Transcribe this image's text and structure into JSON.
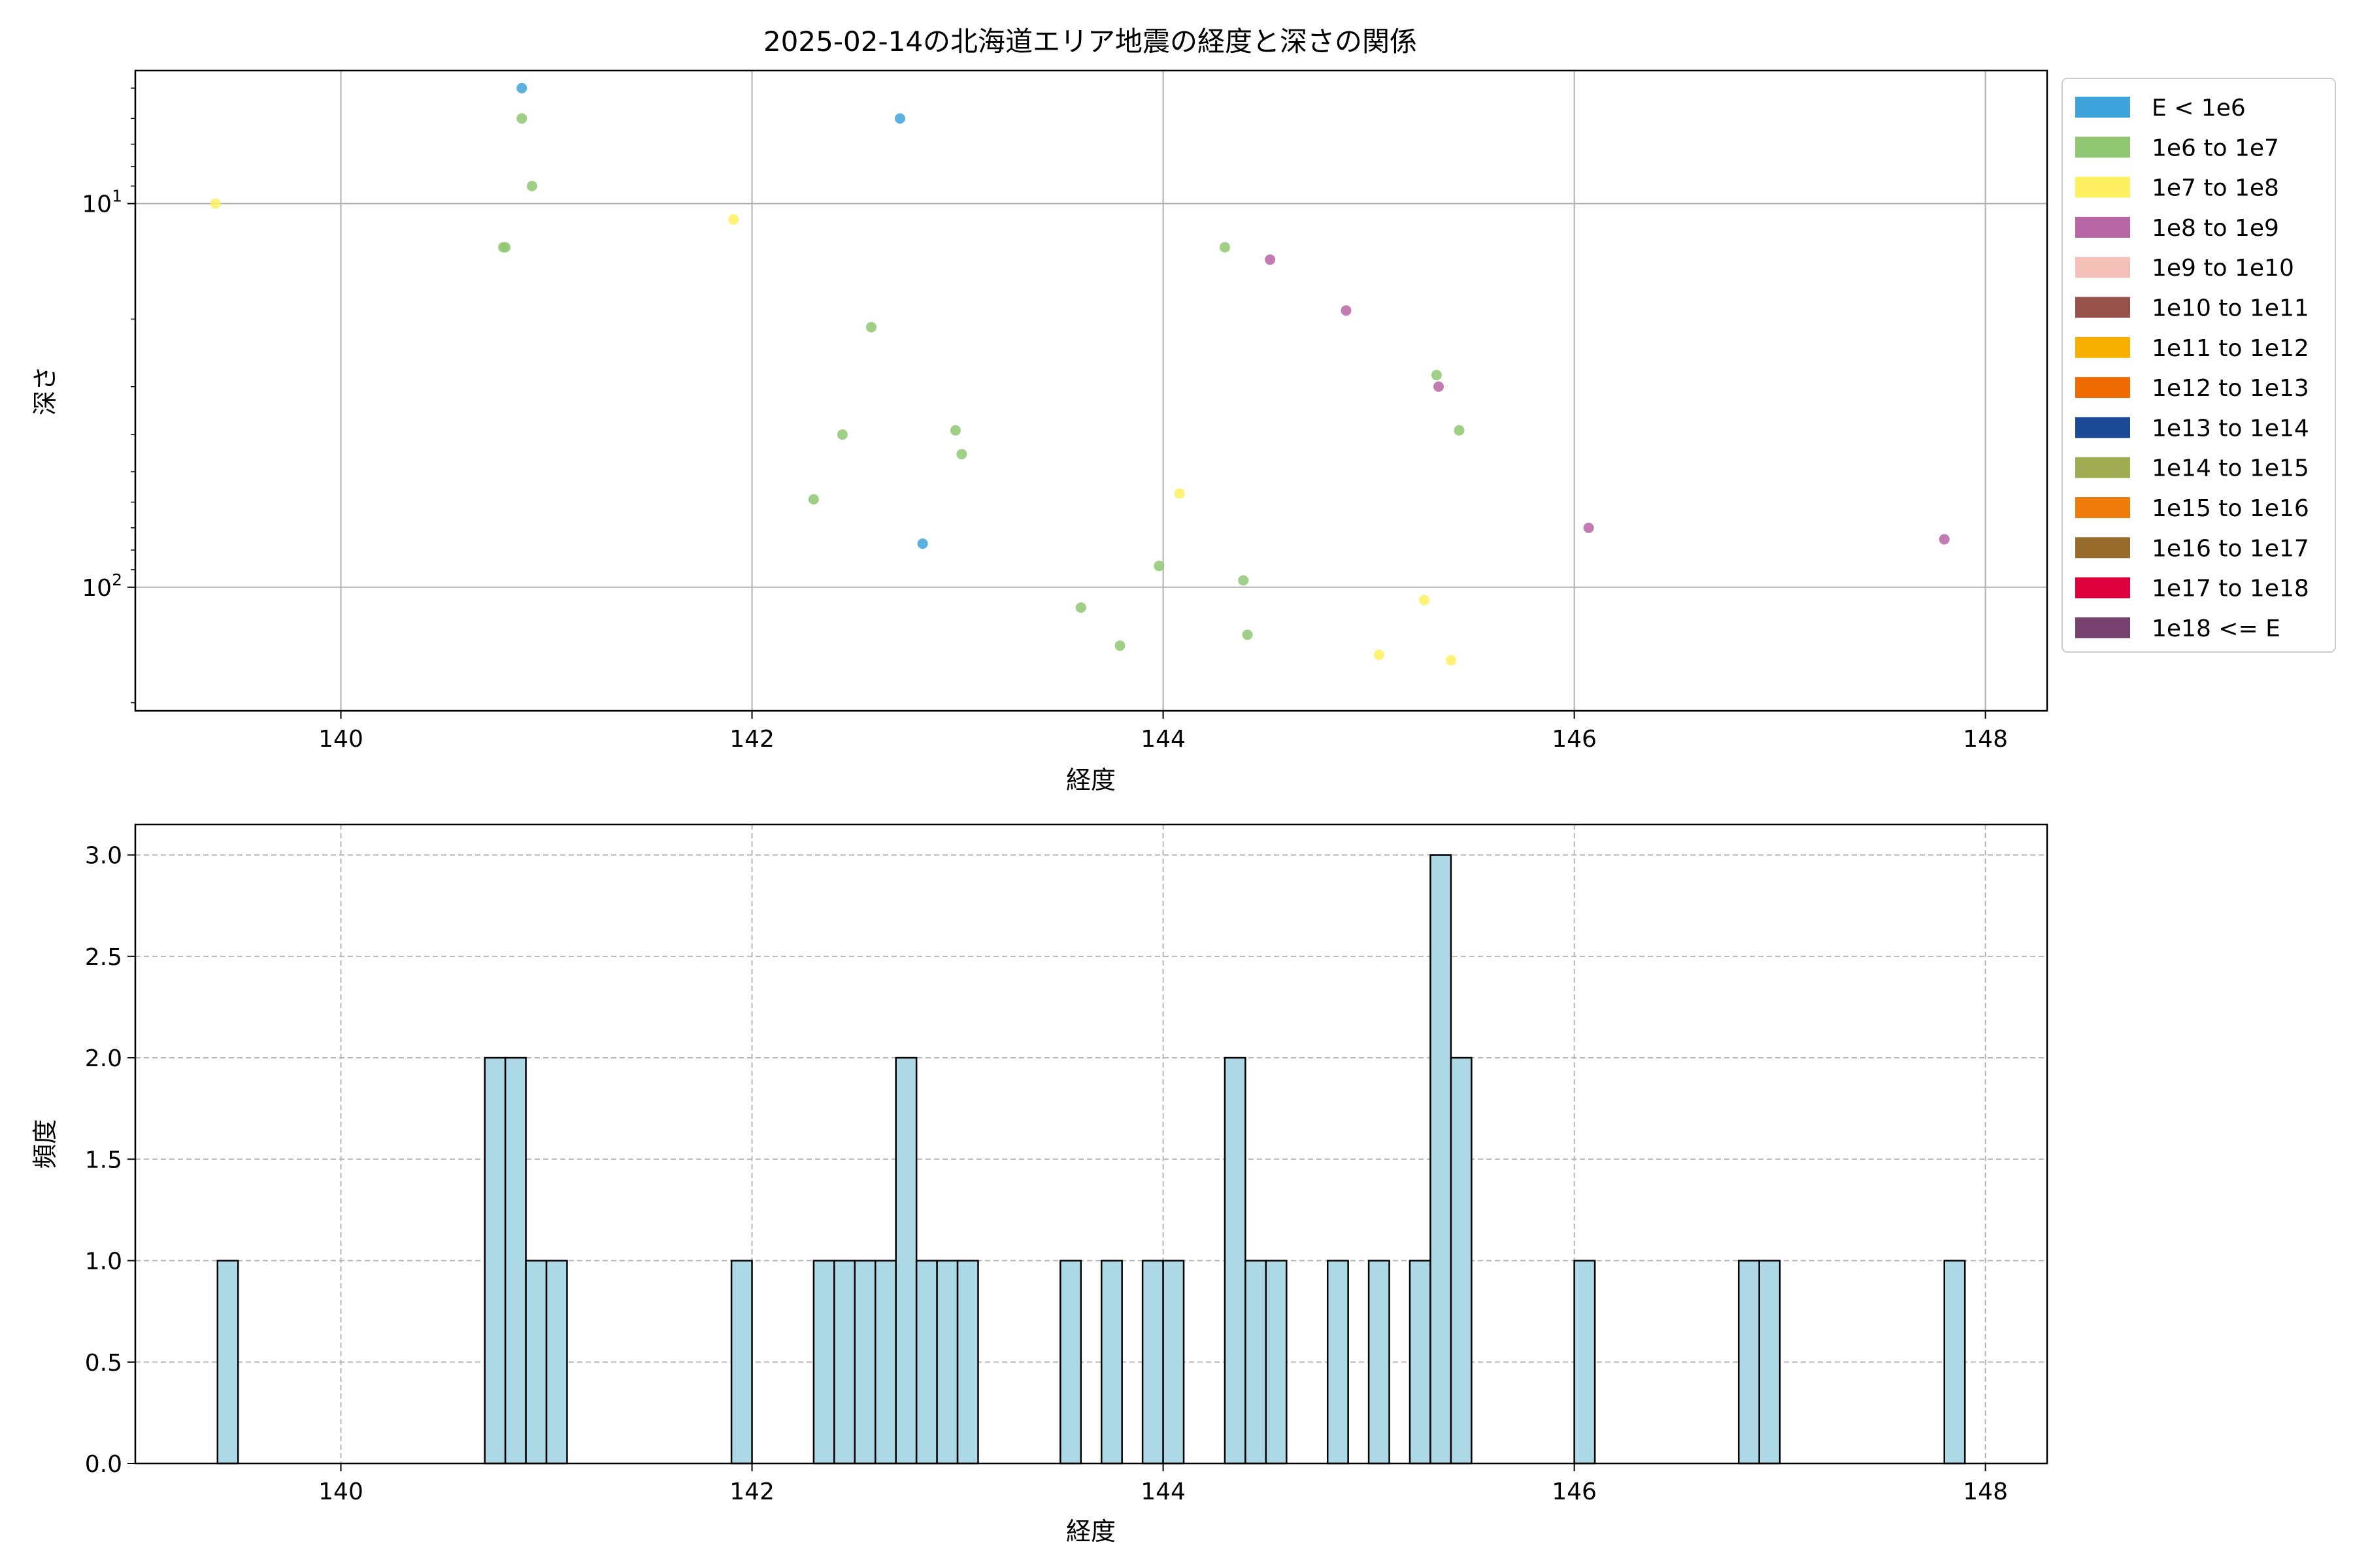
{
  "chart_data": [
    {
      "type": "scatter",
      "title": "2025-02-14の北海道エリア地震の経度と深さの関係",
      "xlabel": "経度",
      "ylabel": "深さ",
      "xlim": [
        139.0,
        148.3
      ],
      "ylim": [
        210,
        4.5
      ],
      "y_scale": "log",
      "y_inverted": true,
      "grid": true,
      "x_ticks": [
        140,
        142,
        144,
        146,
        148
      ],
      "y_ticks": [
        {
          "value": 10,
          "base": "10",
          "exp": "1"
        },
        {
          "value": 100,
          "base": "10",
          "exp": "2"
        }
      ],
      "legend": {
        "placement": "outside-right-top",
        "entries": [
          {
            "label": "E < 1e6",
            "color": "#3fa3dc"
          },
          {
            "label": "1e6 to 1e7",
            "color": "#8fc772"
          },
          {
            "label": "1e7 to 1e8",
            "color": "#fef060"
          },
          {
            "label": "1e8 to 1e9",
            "color": "#b865a3"
          },
          {
            "label": "1e9 to 1e10",
            "color": "#f5c0b8"
          },
          {
            "label": "1e10 to 1e11",
            "color": "#975249"
          },
          {
            "label": "1e11 to 1e12",
            "color": "#f8b000"
          },
          {
            "label": "1e12 to 1e13",
            "color": "#ef6a00"
          },
          {
            "label": "1e13 to 1e14",
            "color": "#1c4995"
          },
          {
            "label": "1e14 to 1e15",
            "color": "#a0ac52"
          },
          {
            "label": "1e15 to 1e16",
            "color": "#ee7a0a"
          },
          {
            "label": "1e16 to 1e17",
            "color": "#966b2b"
          },
          {
            "label": "1e17 to 1e18",
            "color": "#dd003c"
          },
          {
            "label": "1e18 <= E",
            "color": "#76416f"
          }
        ]
      },
      "points": [
        {
          "x": 139.39,
          "y": 10,
          "class": 2
        },
        {
          "x": 140.88,
          "y": 5,
          "class": 0
        },
        {
          "x": 140.88,
          "y": 6,
          "class": 1
        },
        {
          "x": 140.93,
          "y": 9,
          "class": 1
        },
        {
          "x": 140.79,
          "y": 13,
          "class": 1
        },
        {
          "x": 140.8,
          "y": 13,
          "class": 1
        },
        {
          "x": 141.91,
          "y": 11,
          "class": 2
        },
        {
          "x": 142.72,
          "y": 6,
          "class": 0
        },
        {
          "x": 142.58,
          "y": 21,
          "class": 1
        },
        {
          "x": 142.44,
          "y": 40,
          "class": 1
        },
        {
          "x": 142.99,
          "y": 39,
          "class": 1
        },
        {
          "x": 143.02,
          "y": 45,
          "class": 1
        },
        {
          "x": 142.3,
          "y": 59,
          "class": 1
        },
        {
          "x": 142.83,
          "y": 77,
          "class": 0
        },
        {
          "x": 143.6,
          "y": 113,
          "class": 1
        },
        {
          "x": 143.79,
          "y": 142,
          "class": 1
        },
        {
          "x": 143.98,
          "y": 88,
          "class": 1
        },
        {
          "x": 144.08,
          "y": 57,
          "class": 2
        },
        {
          "x": 144.3,
          "y": 13,
          "class": 1
        },
        {
          "x": 144.39,
          "y": 96,
          "class": 1
        },
        {
          "x": 144.41,
          "y": 133,
          "class": 1
        },
        {
          "x": 144.52,
          "y": 14,
          "class": 3
        },
        {
          "x": 144.89,
          "y": 19,
          "class": 3
        },
        {
          "x": 145.05,
          "y": 150,
          "class": 2
        },
        {
          "x": 145.27,
          "y": 108,
          "class": 2
        },
        {
          "x": 145.33,
          "y": 28,
          "class": 1
        },
        {
          "x": 145.34,
          "y": 30,
          "class": 3
        },
        {
          "x": 145.4,
          "y": 155,
          "class": 2
        },
        {
          "x": 145.44,
          "y": 39,
          "class": 1
        },
        {
          "x": 146.07,
          "y": 70,
          "class": 3
        },
        {
          "x": 147.8,
          "y": 75,
          "class": 3
        }
      ]
    },
    {
      "type": "bar",
      "title": "",
      "xlabel": "経度",
      "ylabel": "頻度",
      "xlim": [
        139.0,
        148.3
      ],
      "ylim": [
        0,
        3.15
      ],
      "grid": true,
      "bar_color": "#add8e6",
      "edge_color": "#000000",
      "bin_width": 0.1,
      "x_ticks": [
        140,
        142,
        144,
        146,
        148
      ],
      "y_ticks": [
        "0.0",
        "0.5",
        "1.0",
        "1.5",
        "2.0",
        "2.5",
        "3.0"
      ],
      "bins": [
        {
          "x": 139.4,
          "count": 1
        },
        {
          "x": 140.7,
          "count": 2
        },
        {
          "x": 140.8,
          "count": 2
        },
        {
          "x": 140.9,
          "count": 1
        },
        {
          "x": 141.0,
          "count": 1
        },
        {
          "x": 141.9,
          "count": 1
        },
        {
          "x": 142.3,
          "count": 1
        },
        {
          "x": 142.4,
          "count": 1
        },
        {
          "x": 142.5,
          "count": 1
        },
        {
          "x": 142.6,
          "count": 1
        },
        {
          "x": 142.7,
          "count": 2
        },
        {
          "x": 142.8,
          "count": 1
        },
        {
          "x": 142.9,
          "count": 1
        },
        {
          "x": 143.0,
          "count": 1
        },
        {
          "x": 143.5,
          "count": 1
        },
        {
          "x": 143.7,
          "count": 1
        },
        {
          "x": 143.9,
          "count": 1
        },
        {
          "x": 144.0,
          "count": 1
        },
        {
          "x": 144.3,
          "count": 2
        },
        {
          "x": 144.4,
          "count": 1
        },
        {
          "x": 144.5,
          "count": 1
        },
        {
          "x": 144.8,
          "count": 1
        },
        {
          "x": 145.0,
          "count": 1
        },
        {
          "x": 145.2,
          "count": 1
        },
        {
          "x": 145.3,
          "count": 3
        },
        {
          "x": 145.4,
          "count": 2
        },
        {
          "x": 146.0,
          "count": 1
        },
        {
          "x": 146.8,
          "count": 1
        },
        {
          "x": 146.9,
          "count": 1
        },
        {
          "x": 147.8,
          "count": 1
        }
      ]
    }
  ]
}
